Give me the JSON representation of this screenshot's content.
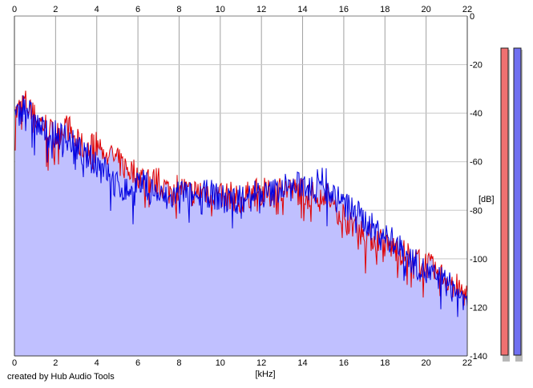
{
  "credit": "created by Hub Audio Tools",
  "level_meters": {
    "left": {
      "color": "#f07070",
      "level_db": -140
    },
    "right": {
      "color": "#7070f0",
      "level_db": -140
    }
  },
  "chart_data": {
    "type": "line",
    "title": "",
    "xlabel": "[kHz]",
    "ylabel": "[dB]",
    "xlim": [
      0,
      22
    ],
    "ylim": [
      -140,
      0
    ],
    "x_ticks": [
      "0",
      "2",
      "4",
      "6",
      "8",
      "10",
      "12",
      "14",
      "16",
      "18",
      "20",
      "22"
    ],
    "y_ticks": [
      "0",
      "-20",
      "-40",
      "-60",
      "-80",
      "-100",
      "-120",
      "-140"
    ],
    "grid": true,
    "fill_color": "#c0c0ff",
    "series": [
      {
        "color": "#e00000",
        "x": [
          0.1,
          0.5,
          1,
          1.5,
          2,
          2.5,
          3,
          3.5,
          4,
          4.5,
          5,
          5.5,
          6,
          6.5,
          7,
          7.5,
          8,
          8.5,
          9,
          9.5,
          10,
          10.5,
          11,
          11.5,
          12,
          12.5,
          13,
          13.5,
          14,
          14.5,
          15,
          15.5,
          16,
          16.5,
          17,
          17.5,
          18,
          18.5,
          19,
          19.5,
          20,
          20.5,
          21,
          21.5,
          22
        ],
        "y": [
          -40,
          -35,
          -42,
          -45,
          -50,
          -44,
          -52,
          -55,
          -53,
          -56,
          -60,
          -63,
          -65,
          -68,
          -68,
          -72,
          -70,
          -73,
          -72,
          -72,
          -75,
          -74,
          -76,
          -73,
          -72,
          -74,
          -70,
          -72,
          -72,
          -74,
          -72,
          -78,
          -82,
          -86,
          -90,
          -92,
          -94,
          -96,
          -98,
          -100,
          -102,
          -106,
          -108,
          -112,
          -115
        ]
      },
      {
        "color": "#0000e0",
        "x": [
          0.1,
          0.5,
          1,
          1.5,
          2,
          2.5,
          3,
          3.5,
          4,
          4.5,
          5,
          5.5,
          6,
          6.5,
          7,
          7.5,
          8,
          8.5,
          9,
          9.5,
          10,
          10.5,
          11,
          11.5,
          12,
          12.5,
          13,
          13.5,
          14,
          14.5,
          15,
          15.5,
          16,
          16.5,
          17,
          17.5,
          18,
          18.5,
          19,
          19.5,
          20,
          20.5,
          21,
          21.5,
          22
        ],
        "y": [
          -42,
          -36,
          -44,
          -48,
          -49,
          -50,
          -54,
          -58,
          -60,
          -64,
          -70,
          -72,
          -68,
          -70,
          -74,
          -76,
          -72,
          -74,
          -74,
          -73,
          -75,
          -76,
          -74,
          -72,
          -74,
          -73,
          -70,
          -71,
          -69,
          -70,
          -66,
          -74,
          -78,
          -80,
          -84,
          -88,
          -90,
          -94,
          -98,
          -102,
          -106,
          -108,
          -110,
          -114,
          -118
        ]
      }
    ]
  }
}
